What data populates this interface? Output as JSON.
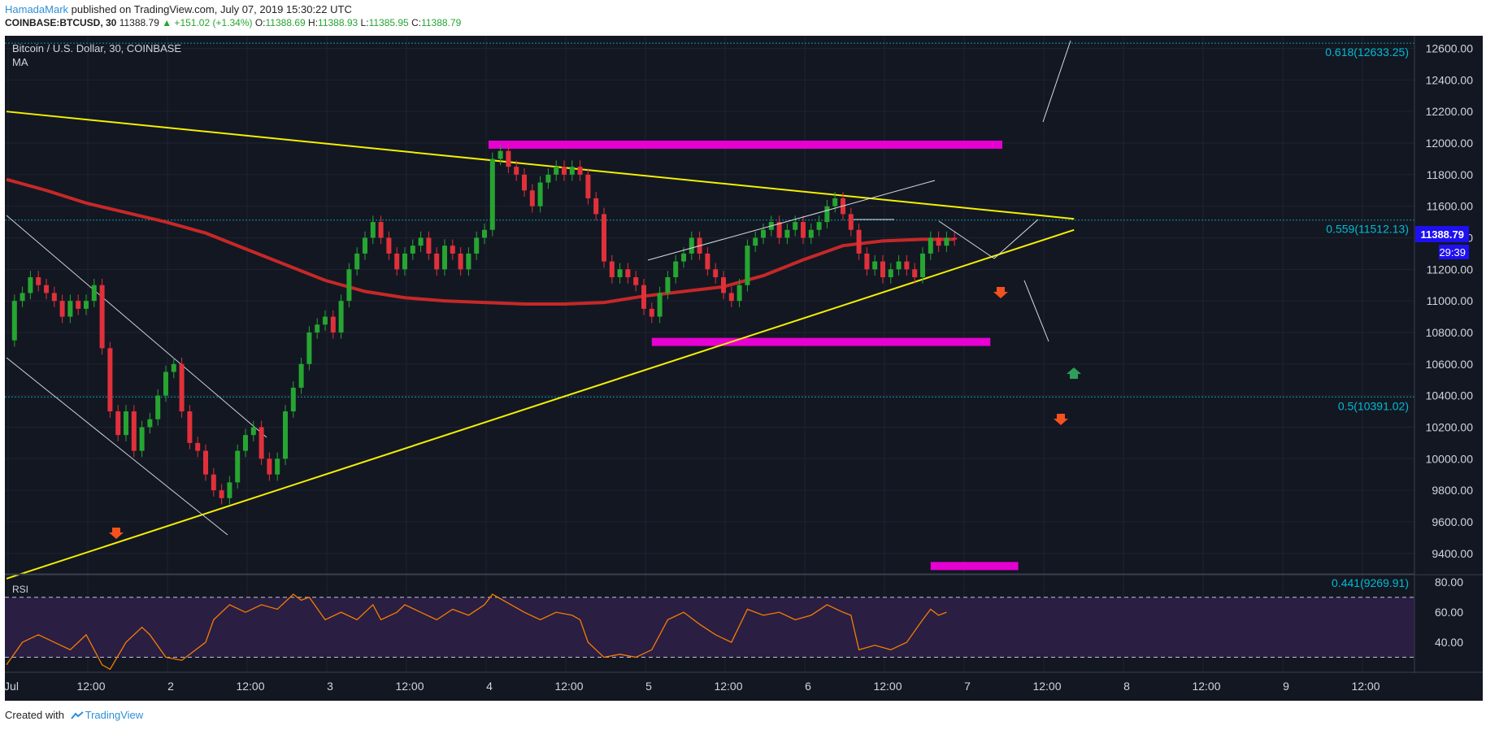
{
  "header": {
    "author": "HamadaMark",
    "published": " published on TradingView.com, July 07, 2019 15:30:22 UTC",
    "symbol_line_prefix": "COINBASE:BTCUSD, 30",
    "last": "11388.79",
    "change": "▲ +151.02 (+1.34%)",
    "o_label": "O:",
    "o": "11388.69",
    "h_label": "H:",
    "h": "11388.93",
    "l_label": "L:",
    "l": "11385.95",
    "c_label": "C:",
    "c": "11388.79"
  },
  "chart_title": "Bitcoin / U.S. Dollar, 30, COINBASE",
  "indicator_ma": "MA",
  "indicator_rsi": "RSI",
  "footer": {
    "created": "Created with",
    "brand": "TradingView"
  },
  "price_badge": "11388.79",
  "countdown": "29:39",
  "colors": {
    "background": "#131722",
    "up": "#26a531",
    "down": "#e0313b",
    "ma": "#c62828",
    "trendline": "#f5f000",
    "zone": "#e600d2",
    "fib": "#00bcd4",
    "rsi_line": "#f57c00",
    "rsi_fill": "#2a1e43",
    "price_badge": "#1e10f0"
  },
  "chart_data": {
    "type": "candlestick",
    "title": "Bitcoin / U.S. Dollar, 30, COINBASE",
    "y_ticks": [
      "12600.00",
      "12400.00",
      "12200.00",
      "12000.00",
      "11800.00",
      "11600.00",
      "11400.00",
      "11200.00",
      "11000.00",
      "10800.00",
      "10600.00",
      "10400.00",
      "10200.00",
      "10000.00",
      "9800.00",
      "9600.00",
      "9400.00"
    ],
    "x_ticks": [
      "Jul",
      "12:00",
      "2",
      "12:00",
      "3",
      "12:00",
      "4",
      "12:00",
      "5",
      "12:00",
      "6",
      "12:00",
      "7",
      "12:00",
      "8",
      "12:00",
      "9",
      "12:00"
    ],
    "ylim": [
      9270,
      12680
    ],
    "fib_levels": [
      {
        "label": "0.618(12633.25)",
        "value": 12633.25
      },
      {
        "label": "0.559(11512.13)",
        "value": 11512.13
      },
      {
        "label": "0.5(10391.02)",
        "value": 10391.02
      },
      {
        "label": "0.441(9269.91)",
        "value": 9269.91
      }
    ],
    "rsi_ticks": [
      "80.00",
      "60.00",
      "40.00"
    ],
    "rsi_range": [
      20,
      85
    ],
    "rsi_bands": [
      70,
      30
    ],
    "close_series": [
      [
        0,
        10750
      ],
      [
        2,
        11000
      ],
      [
        4,
        11050
      ],
      [
        6,
        11150
      ],
      [
        8,
        11100
      ],
      [
        10,
        11050
      ],
      [
        12,
        11000
      ],
      [
        14,
        10900
      ],
      [
        16,
        11000
      ],
      [
        18,
        10950
      ],
      [
        20,
        11000
      ],
      [
        22,
        11100
      ],
      [
        24,
        10700
      ],
      [
        26,
        10300
      ],
      [
        28,
        10150
      ],
      [
        30,
        10300
      ],
      [
        32,
        10050
      ],
      [
        34,
        10200
      ],
      [
        36,
        10250
      ],
      [
        38,
        10400
      ],
      [
        40,
        10550
      ],
      [
        42,
        10600
      ],
      [
        44,
        10300
      ],
      [
        46,
        10100
      ],
      [
        48,
        10050
      ],
      [
        50,
        9900
      ],
      [
        52,
        9800
      ],
      [
        54,
        9750
      ],
      [
        56,
        9850
      ],
      [
        58,
        10050
      ],
      [
        60,
        10150
      ],
      [
        62,
        10200
      ],
      [
        64,
        10000
      ],
      [
        66,
        9900
      ],
      [
        68,
        10000
      ],
      [
        70,
        10300
      ],
      [
        72,
        10450
      ],
      [
        74,
        10600
      ],
      [
        76,
        10800
      ],
      [
        78,
        10850
      ],
      [
        80,
        10900
      ],
      [
        82,
        10800
      ],
      [
        84,
        11000
      ],
      [
        86,
        11200
      ],
      [
        88,
        11300
      ],
      [
        90,
        11400
      ],
      [
        92,
        11500
      ],
      [
        94,
        11400
      ],
      [
        96,
        11300
      ],
      [
        98,
        11200
      ],
      [
        100,
        11300
      ],
      [
        102,
        11350
      ],
      [
        104,
        11400
      ],
      [
        106,
        11300
      ],
      [
        108,
        11200
      ],
      [
        110,
        11350
      ],
      [
        112,
        11300
      ],
      [
        114,
        11200
      ],
      [
        116,
        11300
      ],
      [
        118,
        11400
      ],
      [
        120,
        11450
      ],
      [
        122,
        11900
      ],
      [
        124,
        11950
      ],
      [
        126,
        11850
      ],
      [
        128,
        11800
      ],
      [
        130,
        11700
      ],
      [
        132,
        11600
      ],
      [
        134,
        11750
      ],
      [
        136,
        11800
      ],
      [
        138,
        11850
      ],
      [
        140,
        11800
      ],
      [
        142,
        11850
      ],
      [
        144,
        11800
      ],
      [
        146,
        11650
      ],
      [
        148,
        11550
      ],
      [
        150,
        11250
      ],
      [
        152,
        11150
      ],
      [
        154,
        11200
      ],
      [
        156,
        11150
      ],
      [
        158,
        11100
      ],
      [
        160,
        10950
      ],
      [
        162,
        10900
      ],
      [
        164,
        11050
      ],
      [
        166,
        11150
      ],
      [
        168,
        11250
      ],
      [
        170,
        11300
      ],
      [
        172,
        11400
      ],
      [
        174,
        11300
      ],
      [
        176,
        11200
      ],
      [
        178,
        11150
      ],
      [
        180,
        11050
      ],
      [
        182,
        11000
      ],
      [
        184,
        11100
      ],
      [
        186,
        11350
      ],
      [
        188,
        11400
      ],
      [
        190,
        11450
      ],
      [
        192,
        11500
      ],
      [
        194,
        11400
      ],
      [
        196,
        11450
      ],
      [
        198,
        11500
      ],
      [
        200,
        11400
      ],
      [
        202,
        11450
      ],
      [
        204,
        11500
      ],
      [
        206,
        11600
      ],
      [
        208,
        11650
      ],
      [
        210,
        11550
      ],
      [
        212,
        11450
      ],
      [
        214,
        11300
      ],
      [
        216,
        11200
      ],
      [
        218,
        11250
      ],
      [
        220,
        11150
      ],
      [
        222,
        11200
      ],
      [
        224,
        11250
      ],
      [
        226,
        11200
      ],
      [
        228,
        11150
      ],
      [
        230,
        11300
      ],
      [
        232,
        11400
      ],
      [
        234,
        11350
      ],
      [
        236,
        11400
      ],
      [
        238,
        11389
      ]
    ],
    "ma_series": [
      [
        0,
        11770
      ],
      [
        10,
        11700
      ],
      [
        20,
        11620
      ],
      [
        30,
        11560
      ],
      [
        40,
        11500
      ],
      [
        50,
        11430
      ],
      [
        60,
        11330
      ],
      [
        70,
        11230
      ],
      [
        80,
        11130
      ],
      [
        90,
        11060
      ],
      [
        100,
        11020
      ],
      [
        110,
        11000
      ],
      [
        120,
        10990
      ],
      [
        130,
        10980
      ],
      [
        140,
        10980
      ],
      [
        150,
        10990
      ],
      [
        160,
        11030
      ],
      [
        170,
        11060
      ],
      [
        180,
        11090
      ],
      [
        190,
        11160
      ],
      [
        200,
        11260
      ],
      [
        210,
        11350
      ],
      [
        220,
        11380
      ],
      [
        230,
        11390
      ],
      [
        238,
        11390
      ]
    ],
    "rsi_series": [
      [
        0,
        25
      ],
      [
        4,
        40
      ],
      [
        8,
        45
      ],
      [
        12,
        40
      ],
      [
        16,
        35
      ],
      [
        20,
        45
      ],
      [
        24,
        25
      ],
      [
        26,
        22
      ],
      [
        30,
        40
      ],
      [
        34,
        50
      ],
      [
        36,
        45
      ],
      [
        40,
        30
      ],
      [
        44,
        28
      ],
      [
        46,
        32
      ],
      [
        50,
        40
      ],
      [
        52,
        55
      ],
      [
        56,
        65
      ],
      [
        60,
        60
      ],
      [
        64,
        65
      ],
      [
        68,
        62
      ],
      [
        72,
        72
      ],
      [
        74,
        68
      ],
      [
        76,
        70
      ],
      [
        80,
        55
      ],
      [
        84,
        60
      ],
      [
        88,
        55
      ],
      [
        92,
        65
      ],
      [
        94,
        55
      ],
      [
        98,
        60
      ],
      [
        100,
        65
      ],
      [
        104,
        60
      ],
      [
        108,
        55
      ],
      [
        112,
        62
      ],
      [
        116,
        58
      ],
      [
        120,
        65
      ],
      [
        122,
        72
      ],
      [
        126,
        66
      ],
      [
        130,
        60
      ],
      [
        134,
        55
      ],
      [
        138,
        60
      ],
      [
        142,
        58
      ],
      [
        144,
        55
      ],
      [
        146,
        40
      ],
      [
        150,
        30
      ],
      [
        154,
        32
      ],
      [
        158,
        30
      ],
      [
        162,
        35
      ],
      [
        166,
        55
      ],
      [
        170,
        60
      ],
      [
        174,
        52
      ],
      [
        178,
        45
      ],
      [
        182,
        40
      ],
      [
        186,
        62
      ],
      [
        190,
        58
      ],
      [
        194,
        60
      ],
      [
        198,
        55
      ],
      [
        202,
        58
      ],
      [
        206,
        65
      ],
      [
        210,
        60
      ],
      [
        212,
        58
      ],
      [
        214,
        35
      ],
      [
        218,
        38
      ],
      [
        222,
        35
      ],
      [
        226,
        40
      ],
      [
        230,
        55
      ],
      [
        232,
        62
      ],
      [
        234,
        58
      ],
      [
        236,
        60
      ]
    ],
    "annotations": [
      {
        "type": "zone",
        "color": "#e600d2",
        "from_index": 121,
        "to_index": 250,
        "value": 11990
      },
      {
        "type": "zone",
        "color": "#e600d2",
        "from_index": 162,
        "to_index": 247,
        "value": 10740
      },
      {
        "type": "zone",
        "color": "#e600d2",
        "from_index": 232,
        "to_index": 254,
        "value": 9320
      },
      {
        "type": "trendline",
        "color": "#f5f000",
        "from": [
          0,
          12200
        ],
        "to": [
          268,
          11520
        ]
      },
      {
        "type": "trendline",
        "color": "#f5f000",
        "from": [
          0,
          9240
        ],
        "to": [
          268,
          11450
        ]
      }
    ]
  }
}
